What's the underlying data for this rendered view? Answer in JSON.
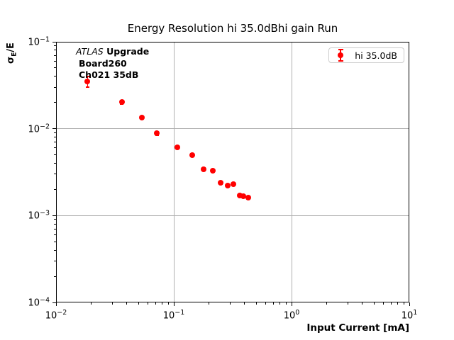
{
  "colors": {
    "marker": "#ff0000",
    "grid": "#b0b0b0",
    "spine": "#000000",
    "legend_border": "#cccccc",
    "background": "#ffffff"
  },
  "annotation": {
    "experiment": "ATLAS",
    "line1_rest": "Upgrade",
    "line2": "Board260",
    "line3": "Ch021 35dB"
  },
  "legend": {
    "label": "hi 35.0dB"
  },
  "axes": {
    "ylabel_sigma": "σ",
    "ylabel_sub": "E",
    "ylabel_rest": "/E"
  },
  "chart_data": {
    "type": "scatter",
    "title": "Energy Resolution hi 35.0dBhi gain Run",
    "xlabel": "Input Current [mA]",
    "ylabel": "σE/E",
    "x_scale": "log",
    "y_scale": "log",
    "xlim": [
      0.01,
      10
    ],
    "ylim": [
      0.0001,
      0.1
    ],
    "grid": true,
    "legend_position": "upper right",
    "x_ticks": [
      {
        "value": 0.01,
        "exponent": -2
      },
      {
        "value": 0.1,
        "exponent": -1
      },
      {
        "value": 1,
        "exponent": 0
      },
      {
        "value": 10,
        "exponent": 1
      }
    ],
    "y_ticks": [
      {
        "value": 0.1,
        "exponent": -1
      },
      {
        "value": 0.01,
        "exponent": -2
      },
      {
        "value": 0.001,
        "exponent": -3
      },
      {
        "value": 0.0001,
        "exponent": -4
      }
    ],
    "series": [
      {
        "name": "hi 35.0dB",
        "color": "#ff0000",
        "marker": "circle-with-errorbar",
        "x": [
          0.0185,
          0.0362,
          0.0537,
          0.0719,
          0.1072,
          0.1428,
          0.1802,
          0.2138,
          0.2509,
          0.2862,
          0.3212,
          0.364,
          0.39,
          0.428
        ],
        "y": [
          0.035,
          0.0201,
          0.0134,
          0.0088,
          0.0061,
          0.005,
          0.0034,
          0.0033,
          0.0024,
          0.0022,
          0.0023,
          0.00171,
          0.00168,
          0.0016
        ],
        "yerr": [
          0.005,
          0.001,
          0.0006,
          0.0004,
          0.00025,
          0.0002,
          0.00013,
          0.00012,
          0.0001,
          9e-05,
          9e-05,
          7e-05,
          7e-05,
          6e-05
        ]
      }
    ]
  }
}
